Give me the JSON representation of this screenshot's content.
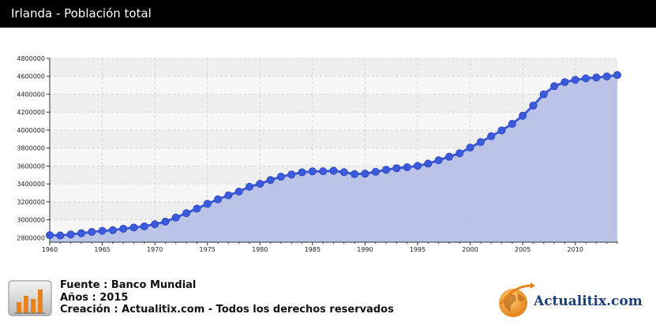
{
  "header": {
    "title": "Irlanda - Población total"
  },
  "chart_data": {
    "type": "area",
    "title": "Irlanda - Población total",
    "xlabel": "",
    "ylabel": "",
    "xlim": [
      1960,
      2014
    ],
    "ylim": [
      2750000,
      4800000
    ],
    "yticks": [
      2800000,
      3000000,
      3200000,
      3400000,
      3600000,
      3800000,
      4000000,
      4200000,
      4400000,
      4600000,
      4800000
    ],
    "xticks": [
      1960,
      1965,
      1970,
      1975,
      1980,
      1985,
      1990,
      1995,
      2000,
      2005,
      2010
    ],
    "grid": true,
    "legend": "none",
    "series": [
      {
        "color": "#3b5bdb",
        "fill": "#b7c1e6",
        "x": [
          1960,
          1961,
          1962,
          1963,
          1964,
          1965,
          1966,
          1967,
          1968,
          1969,
          1970,
          1971,
          1972,
          1973,
          1974,
          1975,
          1976,
          1977,
          1978,
          1979,
          1980,
          1981,
          1982,
          1983,
          1984,
          1985,
          1986,
          1987,
          1988,
          1989,
          1990,
          1991,
          1992,
          1993,
          1994,
          1995,
          1996,
          1997,
          1998,
          1999,
          2000,
          2001,
          2002,
          2003,
          2004,
          2005,
          2006,
          2007,
          2008,
          2009,
          2010,
          2011,
          2012,
          2013,
          2014
        ],
        "values": [
          2828600,
          2824400,
          2836050,
          2849700,
          2863850,
          2876550,
          2884000,
          2900100,
          2913450,
          2926400,
          2950100,
          2978250,
          3024400,
          3073200,
          3123600,
          3177300,
          3227950,
          3272600,
          3314000,
          3368200,
          3401000,
          3443400,
          3480000,
          3504950,
          3529250,
          3540000,
          3540550,
          3546500,
          3530700,
          3509500,
          3513950,
          3534250,
          3557550,
          3575300,
          3585950,
          3601300,
          3626050,
          3664300,
          3703100,
          3741600,
          3805200,
          3866200,
          3931950,
          3996500,
          4070250,
          4159900,
          4273600,
          4398950,
          4489550,
          4535400,
          4560150,
          4576800,
          4586900,
          4598300,
          4614000
        ]
      }
    ]
  },
  "footer": {
    "source": "Fuente : Banco Mundial",
    "year": "Años : 2015",
    "credit": "Creación : Actualitix.com - Todos los derechos reservados"
  },
  "brand": {
    "name": "Actualitix.com"
  }
}
